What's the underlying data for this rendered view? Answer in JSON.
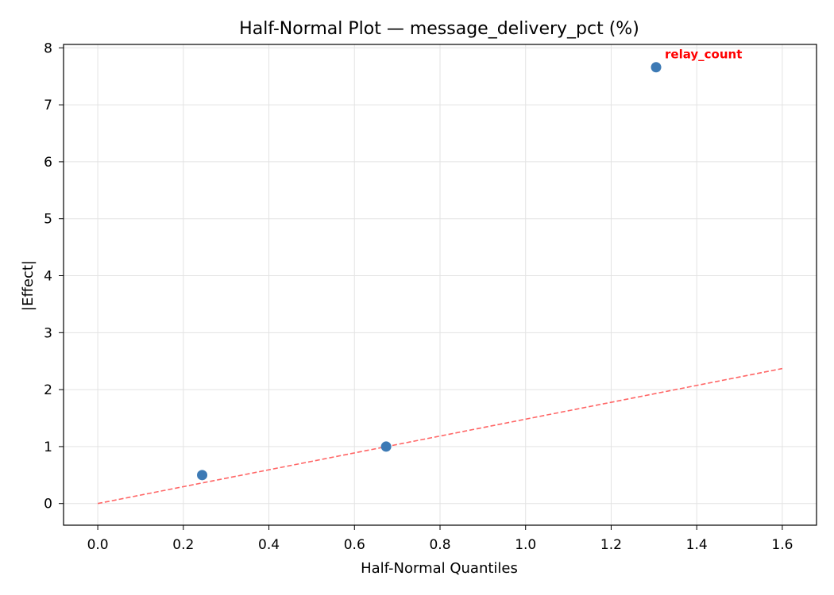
{
  "chart_data": {
    "type": "scatter",
    "title": "Half-Normal Plot — message_delivery_pct (%)",
    "xlabel": "Half-Normal Quantiles",
    "ylabel": "|Effect|",
    "xlim": [
      -0.08,
      1.68
    ],
    "ylim": [
      -0.38,
      8.06
    ],
    "xticks": [
      0.0,
      0.2,
      0.4,
      0.6,
      0.8,
      1.0,
      1.2,
      1.4,
      1.6
    ],
    "xtick_labels": [
      "0.0",
      "0.2",
      "0.4",
      "0.6",
      "0.8",
      "1.0",
      "1.2",
      "1.4",
      "1.6"
    ],
    "yticks": [
      0,
      1,
      2,
      3,
      4,
      5,
      6,
      7,
      8
    ],
    "ytick_labels": [
      "0",
      "1",
      "2",
      "3",
      "4",
      "5",
      "6",
      "7",
      "8"
    ],
    "grid": true,
    "points": [
      {
        "x": 0.244,
        "y": 0.5
      },
      {
        "x": 0.674,
        "y": 1.0
      },
      {
        "x": 1.305,
        "y": 7.66
      }
    ],
    "annotations": [
      {
        "label": "relay_count",
        "x": 1.305,
        "y": 7.66,
        "color": "#ff0000"
      }
    ],
    "reference_line": {
      "x": [
        0.0,
        1.6
      ],
      "y": [
        0.0,
        2.37
      ],
      "color": "#ff6666",
      "style": "dashed"
    },
    "point_color": "#3d7ab5"
  }
}
